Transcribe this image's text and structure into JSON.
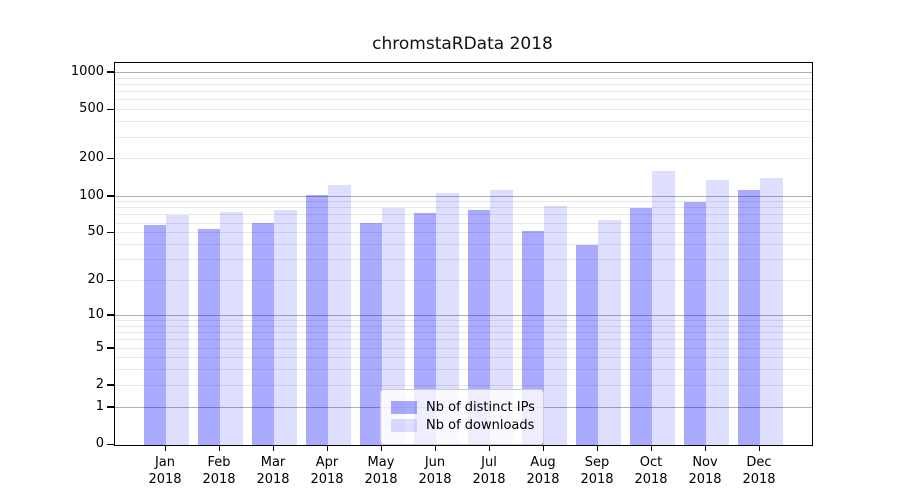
{
  "title": "chromstaRData 2018",
  "colors": {
    "distinct_ips_bar": "rgba(0,0,255,0.335)",
    "downloads_bar": "rgba(0,0,255,0.13)",
    "major_gridline": "#b0b0b0",
    "minor_gridline": "#e8e8e8",
    "axis_frame": "#000000"
  },
  "chart_data": {
    "type": "bar",
    "title": "chromstaRData 2018",
    "categories": [
      "Jan 2018",
      "Feb 2018",
      "Mar 2018",
      "Apr 2018",
      "May 2018",
      "Jun 2018",
      "Jul 2018",
      "Aug 2018",
      "Sep 2018",
      "Oct 2018",
      "Nov 2018",
      "Dec 2018"
    ],
    "x_tick_months": [
      "Jan",
      "Feb",
      "Mar",
      "Apr",
      "May",
      "Jun",
      "Jul",
      "Aug",
      "Sep",
      "Oct",
      "Nov",
      "Dec"
    ],
    "x_tick_year": "2018",
    "series": [
      {
        "name": "Nb of distinct IPs",
        "color": "rgba(0,0,255,0.335)",
        "values": [
          59,
          54,
          61,
          103,
          61,
          73,
          77,
          52,
          40,
          80,
          91,
          112
        ]
      },
      {
        "name": "Nb of downloads",
        "color": "rgba(0,0,255,0.13)",
        "values": [
          70,
          75,
          78,
          123,
          80,
          106,
          114,
          83,
          64,
          160,
          137,
          141
        ]
      }
    ],
    "y_ticks": [
      0,
      1,
      2,
      5,
      10,
      20,
      50,
      100,
      200,
      500,
      1000
    ],
    "y_tick_labels": [
      "0",
      "1",
      "2",
      "5",
      "10",
      "20",
      "50",
      "100",
      "200",
      "500",
      "1000"
    ],
    "yscale": "log10(1+x)",
    "ylim": [
      0,
      1070
    ],
    "xlabel": "",
    "ylabel": "",
    "grid": "horizontal, major gray on powers of 10, minor light gray",
    "legend_position": "inside lower center"
  }
}
